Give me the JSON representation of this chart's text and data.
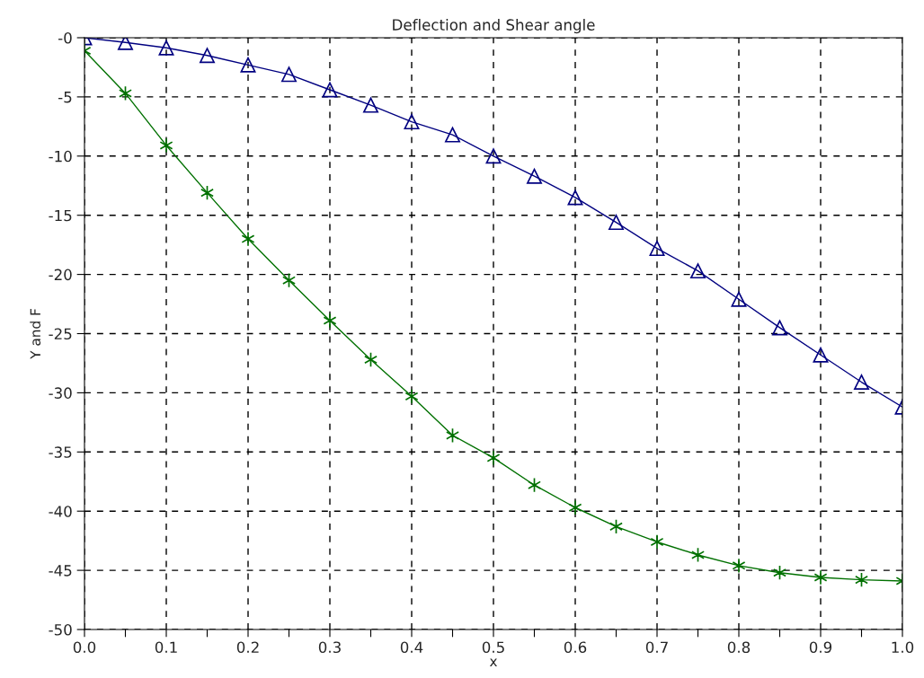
{
  "chart_data": {
    "type": "line",
    "title": "Deflection and Shear angle",
    "xlabel": "x",
    "ylabel": "Y and F",
    "x": [
      0,
      0.05,
      0.1,
      0.15,
      0.2,
      0.25,
      0.3,
      0.35,
      0.4,
      0.45,
      0.5,
      0.55,
      0.6,
      0.65,
      0.7,
      0.75,
      0.8,
      0.85,
      0.9,
      0.95,
      1.0
    ],
    "series": [
      {
        "color": "#000080",
        "marker": "triangle",
        "values": [
          0,
          -0.4,
          -0.85,
          -1.5,
          -2.3,
          -3.1,
          -4.4,
          -5.7,
          -7.1,
          -8.2,
          -10.0,
          -11.7,
          -13.5,
          -15.6,
          -17.8,
          -19.7,
          -22.1,
          -24.5,
          -26.8,
          -29.1,
          -31.2
        ]
      },
      {
        "color": "#007000",
        "marker": "cross",
        "values": [
          -1.1,
          -4.7,
          -9.1,
          -13.1,
          -17.0,
          -20.5,
          -23.9,
          -27.2,
          -30.3,
          -33.6,
          -35.5,
          -37.8,
          -39.7,
          -41.3,
          -42.6,
          -43.7,
          -44.6,
          -45.2,
          -45.6,
          -45.8,
          -45.9
        ]
      }
    ],
    "xlim": [
      0,
      1.0
    ],
    "ylim": [
      -50,
      0
    ],
    "xticks": [
      {
        "value": 0,
        "label": "0.0"
      },
      {
        "value": 0.05,
        "label": null
      },
      {
        "value": 0.1,
        "label": "0.1"
      },
      {
        "value": 0.15,
        "label": null
      },
      {
        "value": 0.2,
        "label": "0.2"
      },
      {
        "value": 0.25,
        "label": null
      },
      {
        "value": 0.3,
        "label": "0.3"
      },
      {
        "value": 0.35,
        "label": null
      },
      {
        "value": 0.4,
        "label": "0.4"
      },
      {
        "value": 0.45,
        "label": null
      },
      {
        "value": 0.5,
        "label": "0.5"
      },
      {
        "value": 0.55,
        "label": null
      },
      {
        "value": 0.6,
        "label": "0.6"
      },
      {
        "value": 0.65,
        "label": null
      },
      {
        "value": 0.7,
        "label": "0.7"
      },
      {
        "value": 0.75,
        "label": null
      },
      {
        "value": 0.8,
        "label": "0.8"
      },
      {
        "value": 0.85,
        "label": null
      },
      {
        "value": 0.9,
        "label": "0.9"
      },
      {
        "value": 0.95,
        "label": null
      },
      {
        "value": 1.0,
        "label": "1.0"
      }
    ],
    "yticks": [
      {
        "value": 0,
        "label": "-0"
      },
      -5,
      -10,
      -15,
      -20,
      -25,
      -30,
      -35,
      -40,
      -45,
      -50
    ],
    "grid": true,
    "line_style": "solid"
  }
}
